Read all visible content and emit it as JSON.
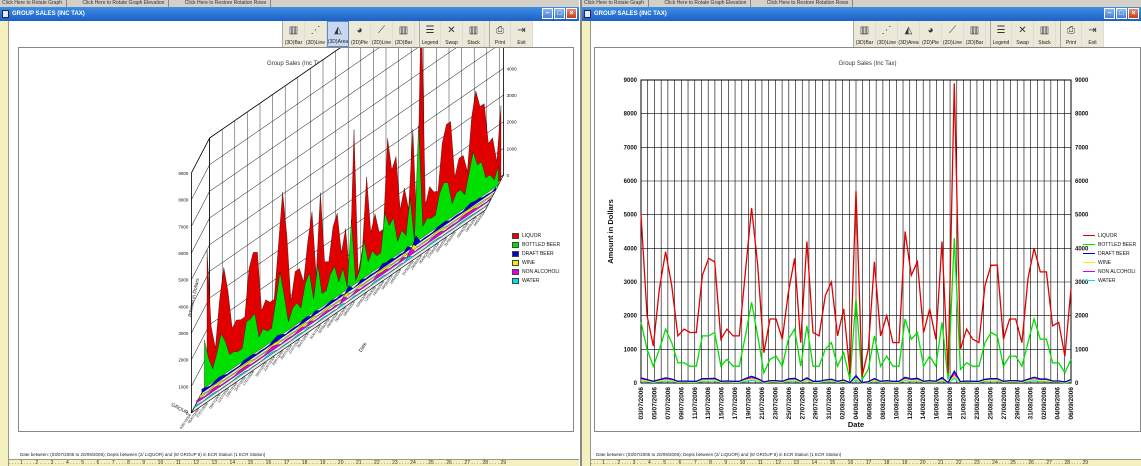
{
  "top_strip": [
    "Click Here to Rotate Graph",
    "Click Here to Rotate Graph Elevation",
    "Click Here to Restore Rotation Rows"
  ],
  "window_title": "GROUP SALES (INC TAX)",
  "toolbar": [
    {
      "label": "(3D)Bar",
      "icon": "bar-3d-icon",
      "glyph": "▥"
    },
    {
      "label": "(3D)Line",
      "icon": "line-3d-icon",
      "glyph": "⋰"
    },
    {
      "label": "(3D)Area",
      "icon": "area-3d-icon",
      "glyph": "◭"
    },
    {
      "label": "(2D)Pie",
      "icon": "pie-icon",
      "glyph": "◕"
    },
    {
      "label": "(2D)Line",
      "icon": "line-2d-icon",
      "glyph": "⟋"
    },
    {
      "label": "(2D)Bar",
      "icon": "bar-2d-icon",
      "glyph": "▥"
    },
    {
      "label": "Legend",
      "icon": "legend-icon",
      "glyph": "☰"
    },
    {
      "label": "Swap",
      "icon": "swap-icon",
      "glyph": "✕"
    },
    {
      "label": "Stack",
      "icon": "stack-icon",
      "glyph": "▥"
    },
    {
      "label": "Print",
      "icon": "printer-icon",
      "glyph": "⎙"
    },
    {
      "label": "Exit",
      "icon": "exit-icon",
      "glyph": "⇥"
    }
  ],
  "footer": "Date between: (03/07/2006 to 20/09/2006); Depts between (2/ LIQUOR) and (8/ GROUP 8) in ECR Station (1 ECR Station)",
  "legend": [
    {
      "name": "LIQUOR",
      "color": "#e00000"
    },
    {
      "name": "BOTTLED BEER",
      "color": "#00e000"
    },
    {
      "name": "DRAFT BEER",
      "color": "#0000c8"
    },
    {
      "name": "WINE",
      "color": "#f0f000"
    },
    {
      "name": "NON ALCOHOLI",
      "color": "#e000e0"
    },
    {
      "name": "WATER",
      "color": "#00e0e0"
    }
  ],
  "chart_data": [
    {
      "type": "area",
      "title": "Group Sales (Inc Tax)",
      "ylabel": "Amount in Dollars",
      "xlabel": "Date",
      "zlabel": "GROUP",
      "y_ticks": [
        "0",
        "1000",
        "2000",
        "3000",
        "4000",
        "5000",
        "6000",
        "7000",
        "8000",
        "9000"
      ],
      "ylim": [
        0,
        9000
      ]
    },
    {
      "type": "line",
      "title": "Group Sales (Inc Tax)",
      "ylabel": "Amount in Dollars",
      "xlabel": "Date",
      "ylim": [
        0,
        9000
      ],
      "y_ticks": [
        0,
        1000,
        2000,
        3000,
        4000,
        5000,
        6000,
        7000,
        8000,
        9000
      ],
      "x_tick_labels": [
        "03/07/2006",
        "05/07/2006",
        "07/07/2006",
        "09/07/2006",
        "11/07/2006",
        "13/07/2006",
        "15/07/2006",
        "17/07/2006",
        "19/07/2006",
        "21/07/2006",
        "23/07/2006",
        "25/07/2006",
        "27/07/2006",
        "29/07/2006",
        "31/07/2006",
        "02/08/2006",
        "04/08/2006",
        "06/08/2006",
        "08/08/2006",
        "10/08/2006",
        "12/08/2006",
        "14/08/2006",
        "16/08/2006",
        "18/08/2006",
        "21/08/2006",
        "23/08/2006",
        "25/08/2006",
        "27/08/2006",
        "29/08/2006",
        "31/08/2006",
        "02/09/2006",
        "04/09/2006",
        "06/09/2006"
      ],
      "series": [
        {
          "name": "LIQUOR",
          "values": [
            5000,
            2000,
            1100,
            2800,
            3900,
            2900,
            1400,
            1600,
            1500,
            1500,
            3200,
            3700,
            3600,
            1300,
            1600,
            1400,
            1400,
            3300,
            5200,
            3500,
            900,
            1900,
            1900,
            1300,
            2700,
            3700,
            1200,
            4200,
            1500,
            1400,
            2600,
            3000,
            1400,
            2200,
            300,
            5700,
            200,
            1000,
            3600,
            1400,
            2000,
            1200,
            1200,
            4500,
            3200,
            3600,
            1500,
            2200,
            1300,
            4200,
            300,
            8900,
            1000,
            1600,
            1300,
            1200,
            2900,
            3500,
            3500,
            1300,
            1900,
            1900,
            1200,
            3100,
            4000,
            3300,
            3300,
            1700,
            1800,
            800,
            2800
          ]
        },
        {
          "name": "BOTTLED BEER",
          "values": [
            1800,
            1000,
            500,
            1000,
            1600,
            1200,
            600,
            600,
            500,
            500,
            1400,
            1400,
            1500,
            500,
            700,
            500,
            500,
            1400,
            2400,
            1400,
            300,
            700,
            800,
            500,
            1300,
            1600,
            500,
            1700,
            500,
            500,
            1000,
            1200,
            500,
            900,
            100,
            2500,
            100,
            400,
            1400,
            500,
            800,
            500,
            500,
            1900,
            1300,
            1500,
            500,
            800,
            500,
            1800,
            100,
            4300,
            400,
            600,
            500,
            500,
            1200,
            1500,
            1400,
            500,
            800,
            800,
            500,
            1200,
            1900,
            1300,
            1300,
            600,
            600,
            300,
            700
          ]
        },
        {
          "name": "DRAFT BEER",
          "values": [
            150,
            100,
            50,
            100,
            150,
            120,
            50,
            60,
            50,
            50,
            130,
            130,
            140,
            50,
            60,
            50,
            50,
            130,
            200,
            130,
            30,
            70,
            70,
            50,
            120,
            140,
            50,
            150,
            50,
            50,
            90,
            110,
            50,
            90,
            10,
            220,
            10,
            40,
            130,
            50,
            70,
            50,
            50,
            170,
            120,
            140,
            50,
            70,
            50,
            160,
            10,
            350,
            40,
            60,
            50,
            50,
            110,
            130,
            130,
            50,
            70,
            70,
            50,
            110,
            170,
            120,
            120,
            60,
            60,
            30,
            100
          ]
        },
        {
          "name": "WINE",
          "values": [
            80,
            60,
            30,
            60,
            90,
            70,
            30,
            40,
            30,
            30,
            80,
            80,
            90,
            30,
            40,
            30,
            30,
            80,
            120,
            80,
            20,
            40,
            40,
            30,
            70,
            90,
            30,
            90,
            30,
            30,
            60,
            70,
            30,
            50,
            10,
            130,
            10,
            20,
            80,
            30,
            40,
            30,
            30,
            100,
            70,
            80,
            30,
            40,
            30,
            90,
            10,
            200,
            20,
            40,
            30,
            30,
            70,
            80,
            80,
            30,
            40,
            40,
            30,
            70,
            100,
            70,
            70,
            40,
            40,
            20,
            60
          ]
        },
        {
          "name": "NON ALCOHOLI",
          "values": [
            100,
            80,
            40,
            80,
            120,
            90,
            40,
            50,
            40,
            40,
            100,
            110,
            110,
            40,
            50,
            40,
            40,
            100,
            160,
            110,
            30,
            60,
            60,
            40,
            90,
            110,
            40,
            130,
            40,
            40,
            80,
            90,
            40,
            70,
            10,
            180,
            10,
            30,
            110,
            40,
            60,
            40,
            40,
            140,
            100,
            110,
            40,
            60,
            40,
            130,
            10,
            270,
            30,
            50,
            40,
            40,
            90,
            110,
            110,
            40,
            60,
            60,
            40,
            90,
            120,
            100,
            100,
            50,
            50,
            30,
            80
          ]
        },
        {
          "name": "WATER",
          "values": [
            60,
            40,
            20,
            40,
            60,
            50,
            20,
            30,
            20,
            20,
            50,
            60,
            60,
            20,
            30,
            20,
            20,
            50,
            80,
            60,
            10,
            30,
            30,
            20,
            50,
            60,
            20,
            70,
            20,
            20,
            40,
            50,
            20,
            40,
            5,
            90,
            5,
            20,
            60,
            20,
            30,
            20,
            20,
            70,
            50,
            60,
            20,
            30,
            20,
            60,
            5,
            140,
            20,
            30,
            20,
            20,
            50,
            60,
            60,
            20,
            30,
            30,
            20,
            50,
            60,
            50,
            50,
            30,
            30,
            10,
            40
          ]
        }
      ]
    }
  ]
}
